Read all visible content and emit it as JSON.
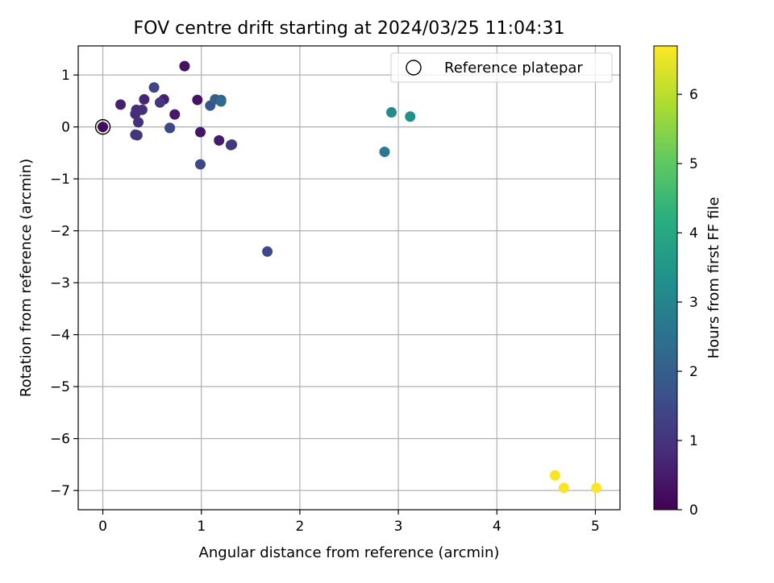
{
  "chart_data": {
    "type": "scatter",
    "title": "FOV centre drift starting at 2024/03/25 11:04:31",
    "xlabel": "Angular distance from reference (arcmin)",
    "ylabel": "Rotation from reference (arcmin)",
    "xlim": [
      -0.25,
      5.25
    ],
    "ylim": [
      -7.37,
      1.56
    ],
    "xticks": [
      0,
      1,
      2,
      3,
      4,
      5
    ],
    "xtick_labels": [
      "0",
      "1",
      "2",
      "3",
      "4",
      "5"
    ],
    "yticks": [
      1,
      0,
      -1,
      -2,
      -3,
      -4,
      -5,
      -6,
      -7
    ],
    "ytick_labels": [
      "1",
      "0",
      "−1",
      "−2",
      "−3",
      "−4",
      "−5",
      "−6",
      "−7"
    ],
    "grid": true,
    "legend": {
      "position": "upper right",
      "entries": [
        {
          "label": "Reference platepar",
          "marker": "open-circle"
        }
      ]
    },
    "reference_point": {
      "x": 0,
      "y": 0
    },
    "colorbar": {
      "label": "Hours from first FF file",
      "colormap": "viridis",
      "range": [
        0,
        6.7
      ],
      "ticks": [
        0,
        1,
        2,
        3,
        4,
        5,
        6
      ],
      "tick_labels": [
        "0",
        "1",
        "2",
        "3",
        "4",
        "5",
        "6"
      ]
    },
    "points": [
      {
        "x": 0.0,
        "y": 0.0,
        "hours": 0.2
      },
      {
        "x": 0.83,
        "y": 1.17,
        "hours": 0.3
      },
      {
        "x": 0.96,
        "y": 0.52,
        "hours": 0.35
      },
      {
        "x": 0.73,
        "y": 0.24,
        "hours": 0.45
      },
      {
        "x": 0.99,
        "y": -0.1,
        "hours": 0.4
      },
      {
        "x": 1.18,
        "y": -0.26,
        "hours": 0.5
      },
      {
        "x": 0.18,
        "y": 0.43,
        "hours": 0.6
      },
      {
        "x": 0.62,
        "y": 0.53,
        "hours": 0.6
      },
      {
        "x": 0.42,
        "y": 0.53,
        "hours": 0.7
      },
      {
        "x": 0.33,
        "y": 0.25,
        "hours": 0.8
      },
      {
        "x": 0.34,
        "y": 0.33,
        "hours": 0.85
      },
      {
        "x": 0.36,
        "y": 0.09,
        "hours": 0.9
      },
      {
        "x": 0.4,
        "y": 0.33,
        "hours": 0.9
      },
      {
        "x": 0.33,
        "y": -0.15,
        "hours": 1.0
      },
      {
        "x": 0.35,
        "y": -0.16,
        "hours": 1.0
      },
      {
        "x": 0.58,
        "y": 0.47,
        "hours": 1.05
      },
      {
        "x": 1.31,
        "y": -0.34,
        "hours": 1.1
      },
      {
        "x": 1.3,
        "y": -0.35,
        "hours": 1.1
      },
      {
        "x": 0.68,
        "y": -0.02,
        "hours": 1.3
      },
      {
        "x": 0.68,
        "y": -0.02,
        "hours": 1.45
      },
      {
        "x": 0.52,
        "y": 0.76,
        "hours": 1.4
      },
      {
        "x": 0.99,
        "y": -0.72,
        "hours": 1.45
      },
      {
        "x": 1.67,
        "y": -2.4,
        "hours": 1.5
      },
      {
        "x": 1.09,
        "y": 0.41,
        "hours": 1.75
      },
      {
        "x": 1.14,
        "y": 0.53,
        "hours": 2.0
      },
      {
        "x": 1.2,
        "y": 0.52,
        "hours": 2.1
      },
      {
        "x": 1.2,
        "y": 0.49,
        "hours": 2.3
      },
      {
        "x": 2.86,
        "y": -0.48,
        "hours": 2.7
      },
      {
        "x": 2.93,
        "y": 0.28,
        "hours": 3.15
      },
      {
        "x": 3.12,
        "y": 0.2,
        "hours": 3.3
      },
      {
        "x": 4.59,
        "y": -6.71,
        "hours": 6.65
      },
      {
        "x": 4.68,
        "y": -6.95,
        "hours": 6.65
      },
      {
        "x": 5.01,
        "y": -6.95,
        "hours": 6.7
      }
    ]
  }
}
